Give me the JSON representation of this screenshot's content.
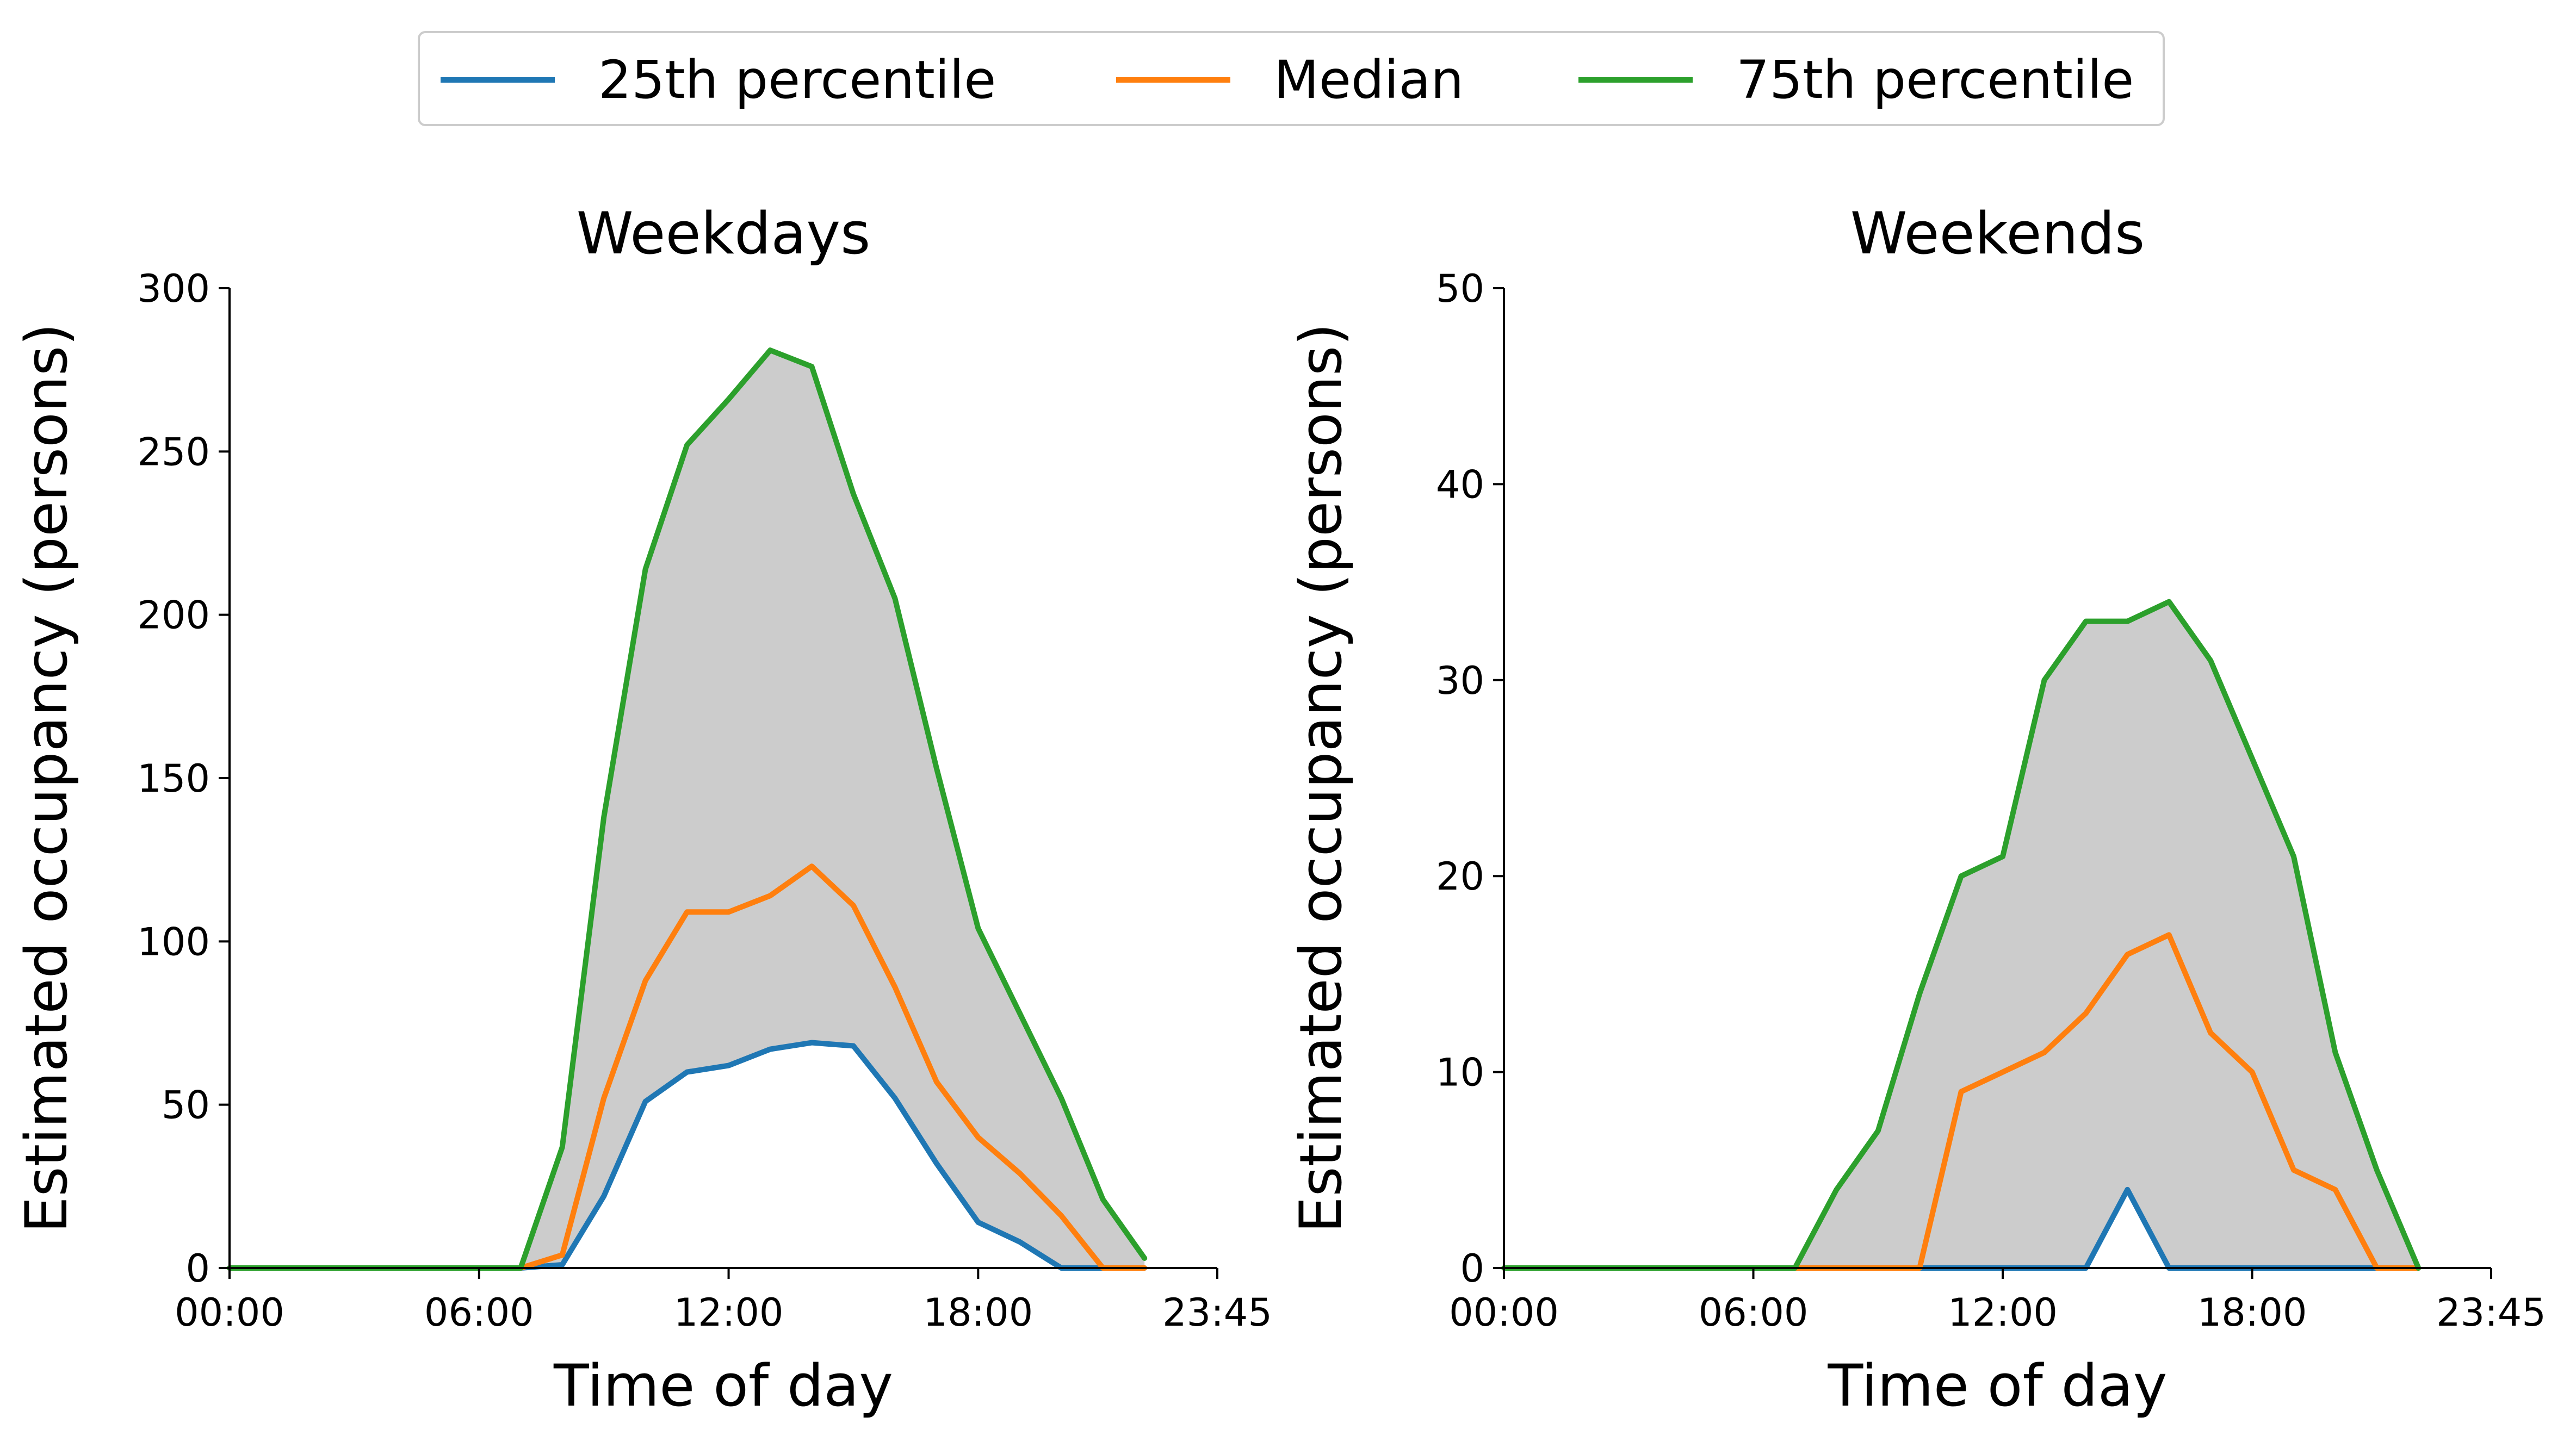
{
  "legend": {
    "items": [
      {
        "label": "25th percentile",
        "color": "#1f77b4"
      },
      {
        "label": "Median",
        "color": "#ff7f0e"
      },
      {
        "label": "75th percentile",
        "color": "#2ca02c"
      }
    ]
  },
  "band_color": "#cccccc",
  "chart_data": [
    {
      "type": "line",
      "title": "Weekdays",
      "xlabel": "Time of day",
      "ylabel": "Estimated occupancy (persons)",
      "xlim": [
        0,
        23.75
      ],
      "ylim": [
        0,
        300
      ],
      "xticks": [
        0,
        6,
        12,
        18,
        23.75
      ],
      "xtick_labels": [
        "00:00",
        "06:00",
        "12:00",
        "18:00",
        "23:45"
      ],
      "yticks": [
        0,
        50,
        100,
        150,
        200,
        250,
        300
      ],
      "ytick_labels": [
        "0",
        "50",
        "100",
        "150",
        "200",
        "250",
        "300"
      ],
      "grid": false,
      "shaded_band": "between 25th and 75th percentile",
      "series": [
        {
          "name": "25th percentile",
          "color": "#1f77b4",
          "x": [
            0,
            7,
            8,
            9,
            10,
            11,
            12,
            13,
            14,
            15,
            16,
            17,
            18,
            19,
            20,
            21,
            22
          ],
          "y": [
            0,
            0,
            1,
            22,
            51,
            60,
            62,
            67,
            69,
            68,
            52,
            32,
            14,
            8,
            0,
            0,
            0
          ]
        },
        {
          "name": "Median",
          "color": "#ff7f0e",
          "x": [
            0,
            7,
            8,
            9,
            10,
            11,
            12,
            13,
            14,
            15,
            16,
            17,
            18,
            19,
            20,
            21,
            22
          ],
          "y": [
            0,
            0,
            4,
            52,
            88,
            109,
            109,
            114,
            123,
            111,
            86,
            57,
            40,
            29,
            16,
            0,
            0
          ]
        },
        {
          "name": "75th percentile",
          "color": "#2ca02c",
          "x": [
            0,
            7,
            8,
            9,
            10,
            11,
            12,
            13,
            14,
            15,
            16,
            17,
            18,
            19,
            20,
            21,
            22
          ],
          "y": [
            0,
            0,
            37,
            138,
            214,
            252,
            266,
            281,
            276,
            237,
            205,
            153,
            104,
            78,
            52,
            21,
            3
          ]
        }
      ]
    },
    {
      "type": "line",
      "title": "Weekends",
      "xlabel": "Time of day",
      "ylabel": "Estimated occupancy (persons)",
      "xlim": [
        0,
        23.75
      ],
      "ylim": [
        0,
        50
      ],
      "xticks": [
        0,
        6,
        12,
        18,
        23.75
      ],
      "xtick_labels": [
        "00:00",
        "06:00",
        "12:00",
        "18:00",
        "23:45"
      ],
      "yticks": [
        0,
        10,
        20,
        30,
        40,
        50
      ],
      "ytick_labels": [
        "0",
        "10",
        "20",
        "30",
        "40",
        "50"
      ],
      "grid": false,
      "shaded_band": "between 25th and 75th percentile",
      "series": [
        {
          "name": "25th percentile",
          "color": "#1f77b4",
          "x": [
            0,
            14,
            15,
            16,
            22
          ],
          "y": [
            0,
            0,
            4,
            0,
            0
          ]
        },
        {
          "name": "Median",
          "color": "#ff7f0e",
          "x": [
            0,
            10,
            11,
            12,
            13,
            14,
            15,
            16,
            17,
            18,
            19,
            20,
            21,
            22
          ],
          "y": [
            0,
            0,
            9,
            10,
            11,
            13,
            16,
            17,
            12,
            10,
            5,
            4,
            0,
            0
          ]
        },
        {
          "name": "75th percentile",
          "color": "#2ca02c",
          "x": [
            0,
            7,
            8,
            9,
            10,
            11,
            12,
            13,
            14,
            15,
            16,
            17,
            18,
            19,
            20,
            21,
            22
          ],
          "y": [
            0,
            0,
            4,
            7,
            14,
            20,
            21,
            30,
            33,
            33,
            34,
            31,
            26,
            21,
            11,
            5,
            0
          ]
        }
      ]
    }
  ]
}
